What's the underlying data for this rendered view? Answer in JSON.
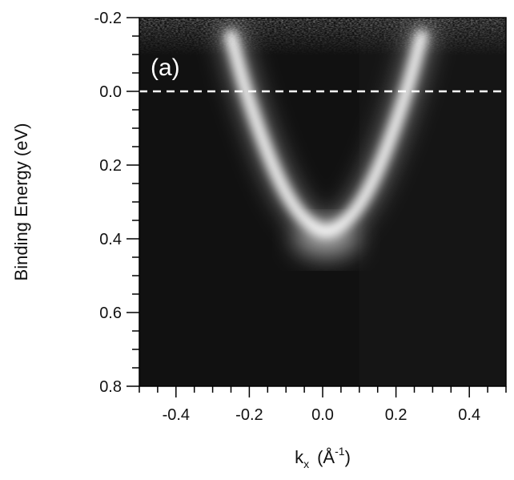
{
  "chart_data": {
    "type": "heatmap",
    "panel_label": "(a)",
    "xlabel": {
      "base": "k",
      "sub": "x",
      "unit": "(Å",
      "sup": "-1",
      "close": ")"
    },
    "ylabel": "Binding Energy (eV)",
    "xlim": [
      -0.5,
      0.5
    ],
    "ylim": [
      -0.2,
      0.8
    ],
    "y_inverted": true,
    "x_ticks": [
      {
        "v": -0.4,
        "label": "-0.4"
      },
      {
        "v": -0.2,
        "label": "-0.2"
      },
      {
        "v": 0.0,
        "label": "0.0"
      },
      {
        "v": 0.2,
        "label": "0.2"
      },
      {
        "v": 0.4,
        "label": "0.4"
      }
    ],
    "y_ticks": [
      {
        "v": -0.2,
        "label": "-0.2"
      },
      {
        "v": 0.0,
        "label": "0.0"
      },
      {
        "v": 0.2,
        "label": "0.2"
      },
      {
        "v": 0.4,
        "label": "0.4"
      },
      {
        "v": 0.6,
        "label": "0.6"
      },
      {
        "v": 0.8,
        "label": "0.8"
      }
    ],
    "fermi_level": {
      "binding_energy": 0.0,
      "style": "dashed",
      "color": "#ffffff"
    },
    "band": {
      "description": "parabolic band intensity",
      "k0": 0.01,
      "bottom_energy": 0.39,
      "fermi_crossings_k": [
        -0.21,
        0.23
      ],
      "points": [
        {
          "k": -0.25,
          "E": -0.15
        },
        {
          "k": -0.21,
          "E": 0.0
        },
        {
          "k": -0.15,
          "E": 0.17
        },
        {
          "k": -0.1,
          "E": 0.28
        },
        {
          "k": -0.05,
          "E": 0.35
        },
        {
          "k": 0.01,
          "E": 0.39
        },
        {
          "k": 0.07,
          "E": 0.35
        },
        {
          "k": 0.12,
          "E": 0.28
        },
        {
          "k": 0.17,
          "E": 0.17
        },
        {
          "k": 0.23,
          "E": 0.0
        },
        {
          "k": 0.27,
          "E": -0.15
        }
      ]
    },
    "colors": {
      "background": "#111111",
      "band": "#ffffff",
      "frame": "#000000"
    }
  }
}
